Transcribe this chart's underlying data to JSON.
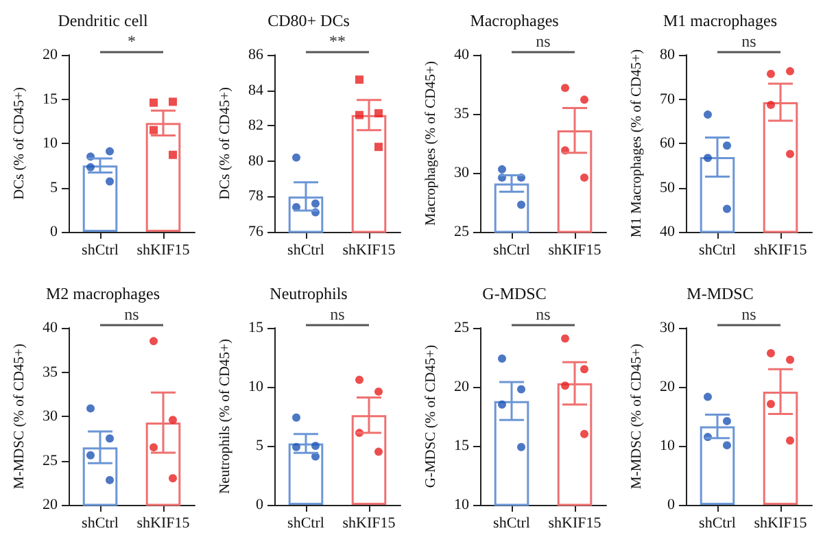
{
  "chart_data": [
    {
      "type": "bar",
      "title": "Dendritic cell",
      "ylabel": "DCs (% of CD45+)",
      "categories": [
        "shCtrl",
        "shKIF15"
      ],
      "ylim": [
        0,
        20
      ],
      "yticks": [
        0,
        5,
        10,
        15,
        20
      ],
      "grid": false,
      "annotations": [
        "*"
      ],
      "series": [
        {
          "type": "bar",
          "colors": [
            "#6b96d6",
            "#ef7070"
          ],
          "values": [
            7.5,
            12.3
          ],
          "errors": [
            0.8,
            1.4
          ]
        },
        {
          "type": "scatter",
          "color": "#1f55b5",
          "marker": "circle",
          "x": [
            "shCtrl",
            "shCtrl",
            "shCtrl",
            "shCtrl"
          ],
          "values": [
            8.5,
            9.1,
            7.3,
            5.7
          ]
        },
        {
          "type": "scatter",
          "color": "#e82020",
          "marker": "square",
          "x": [
            "shKIF15",
            "shKIF15",
            "shKIF15",
            "shKIF15"
          ],
          "values": [
            14.6,
            14.7,
            11.5,
            8.7
          ]
        }
      ]
    },
    {
      "type": "bar",
      "title": "CD80+ DCs",
      "ylabel": "DCs (% of CD45+)",
      "categories": [
        "shCtrl",
        "shKIF15"
      ],
      "ylim": [
        76,
        86
      ],
      "yticks": [
        76,
        78,
        80,
        82,
        84,
        86
      ],
      "grid": false,
      "annotations": [
        "**"
      ],
      "series": [
        {
          "type": "bar",
          "colors": [
            "#6b96d6",
            "#ef7070"
          ],
          "values": [
            78.0,
            82.6
          ],
          "errors": [
            0.8,
            0.85
          ]
        },
        {
          "type": "scatter",
          "color": "#1f55b5",
          "marker": "circle",
          "x": [
            "shCtrl",
            "shCtrl",
            "shCtrl",
            "shCtrl"
          ],
          "values": [
            80.2,
            77.6,
            77.4,
            77.1
          ]
        },
        {
          "type": "scatter",
          "color": "#e82020",
          "marker": "square",
          "x": [
            "shKIF15",
            "shKIF15",
            "shKIF15",
            "shKIF15"
          ],
          "values": [
            84.6,
            82.7,
            82.6,
            80.8
          ]
        }
      ]
    },
    {
      "type": "bar",
      "title": "Macrophages",
      "ylabel": "Macrophages (% of CD45+)",
      "categories": [
        "shCtrl",
        "shKIF15"
      ],
      "ylim": [
        25,
        40
      ],
      "yticks": [
        25,
        30,
        35,
        40
      ],
      "grid": false,
      "annotations": [
        "ns"
      ],
      "series": [
        {
          "type": "bar",
          "colors": [
            "#6b96d6",
            "#ef7070"
          ],
          "values": [
            29.1,
            33.6
          ],
          "errors": [
            0.7,
            1.9
          ]
        },
        {
          "type": "scatter",
          "color": "#1f55b5",
          "marker": "circle",
          "x": [
            "shCtrl",
            "shCtrl",
            "shCtrl",
            "shCtrl"
          ],
          "values": [
            30.3,
            29.6,
            29.6,
            27.3
          ]
        },
        {
          "type": "scatter",
          "color": "#e82020",
          "marker": "circle",
          "x": [
            "shKIF15",
            "shKIF15",
            "shKIF15",
            "shKIF15"
          ],
          "values": [
            37.2,
            36.2,
            31.9,
            29.6
          ]
        }
      ]
    },
    {
      "type": "bar",
      "title": "M1 macrophages",
      "ylabel": "M1 Macrophages (% of CD45+)",
      "categories": [
        "shCtrl",
        "shKIF15"
      ],
      "ylim": [
        40,
        80
      ],
      "yticks": [
        40,
        50,
        60,
        70,
        80
      ],
      "grid": false,
      "annotations": [
        "ns"
      ],
      "series": [
        {
          "type": "bar",
          "colors": [
            "#6b96d6",
            "#ef7070"
          ],
          "values": [
            56.9,
            69.3
          ],
          "errors": [
            4.4,
            4.2
          ]
        },
        {
          "type": "scatter",
          "color": "#1f55b5",
          "marker": "circle",
          "x": [
            "shCtrl",
            "shCtrl",
            "shCtrl",
            "shCtrl"
          ],
          "values": [
            66.5,
            59.5,
            56.7,
            45.2
          ]
        },
        {
          "type": "scatter",
          "color": "#e82020",
          "marker": "circle",
          "x": [
            "shKIF15",
            "shKIF15",
            "shKIF15",
            "shKIF15"
          ],
          "values": [
            75.7,
            76.3,
            68.7,
            57.6
          ]
        }
      ]
    },
    {
      "type": "bar",
      "title": "M2 macrophages",
      "ylabel": "M-MDSC (% of CD45+)",
      "categories": [
        "shCtrl",
        "shKIF15"
      ],
      "ylim": [
        20,
        40
      ],
      "yticks": [
        20,
        25,
        30,
        35,
        40
      ],
      "grid": false,
      "annotations": [
        "ns"
      ],
      "series": [
        {
          "type": "bar",
          "colors": [
            "#6b96d6",
            "#ef7070"
          ],
          "values": [
            26.5,
            29.3
          ],
          "errors": [
            1.8,
            3.4
          ]
        },
        {
          "type": "scatter",
          "color": "#1f55b5",
          "marker": "circle",
          "x": [
            "shCtrl",
            "shCtrl",
            "shCtrl",
            "shCtrl"
          ],
          "values": [
            30.9,
            27.5,
            25.6,
            22.8
          ]
        },
        {
          "type": "scatter",
          "color": "#e82020",
          "marker": "circle",
          "x": [
            "shKIF15",
            "shKIF15",
            "shKIF15",
            "shKIF15"
          ],
          "values": [
            38.5,
            29.6,
            26.5,
            23.0
          ]
        }
      ]
    },
    {
      "type": "bar",
      "title": "Neutrophils",
      "ylabel": "Neutrophils (% of CD45+)",
      "categories": [
        "shCtrl",
        "shKIF15"
      ],
      "ylim": [
        0,
        15
      ],
      "yticks": [
        0,
        5,
        10,
        15
      ],
      "grid": false,
      "annotations": [
        "ns"
      ],
      "series": [
        {
          "type": "bar",
          "colors": [
            "#6b96d6",
            "#ef7070"
          ],
          "values": [
            5.2,
            7.6
          ],
          "errors": [
            0.8,
            1.5
          ]
        },
        {
          "type": "scatter",
          "color": "#1f55b5",
          "marker": "circle",
          "x": [
            "shCtrl",
            "shCtrl",
            "shCtrl",
            "shCtrl"
          ],
          "values": [
            7.4,
            5.0,
            4.9,
            4.1
          ]
        },
        {
          "type": "scatter",
          "color": "#e82020",
          "marker": "circle",
          "x": [
            "shKIF15",
            "shKIF15",
            "shKIF15",
            "shKIF15"
          ],
          "values": [
            10.6,
            9.6,
            6.1,
            4.5
          ]
        }
      ]
    },
    {
      "type": "bar",
      "title": "G-MDSC",
      "ylabel": "G-MDSC (% of CD45+)",
      "categories": [
        "shCtrl",
        "shKIF15"
      ],
      "ylim": [
        10,
        25
      ],
      "yticks": [
        10,
        15,
        20,
        25
      ],
      "grid": false,
      "annotations": [
        "ns"
      ],
      "series": [
        {
          "type": "bar",
          "colors": [
            "#6b96d6",
            "#ef7070"
          ],
          "values": [
            18.8,
            20.3
          ],
          "errors": [
            1.6,
            1.8
          ]
        },
        {
          "type": "scatter",
          "color": "#1f55b5",
          "marker": "circle",
          "x": [
            "shCtrl",
            "shCtrl",
            "shCtrl",
            "shCtrl"
          ],
          "values": [
            22.4,
            19.8,
            18.5,
            14.9
          ]
        },
        {
          "type": "scatter",
          "color": "#e82020",
          "marker": "circle",
          "x": [
            "shKIF15",
            "shKIF15",
            "shKIF15",
            "shKIF15"
          ],
          "values": [
            24.1,
            21.5,
            20.1,
            16.0
          ]
        }
      ]
    },
    {
      "type": "bar",
      "title": "M-MDSC",
      "ylabel": "M-MDSC (% of CD45+)",
      "categories": [
        "shCtrl",
        "shKIF15"
      ],
      "ylim": [
        0,
        30
      ],
      "yticks": [
        0,
        10,
        20,
        30
      ],
      "grid": false,
      "annotations": [
        "ns"
      ],
      "series": [
        {
          "type": "bar",
          "colors": [
            "#6b96d6",
            "#ef7070"
          ],
          "values": [
            13.3,
            19.2
          ],
          "errors": [
            2.0,
            3.8
          ]
        },
        {
          "type": "scatter",
          "color": "#1f55b5",
          "marker": "circle",
          "x": [
            "shCtrl",
            "shCtrl",
            "shCtrl",
            "shCtrl"
          ],
          "values": [
            18.3,
            14.2,
            11.5,
            10.1
          ]
        },
        {
          "type": "scatter",
          "color": "#e82020",
          "marker": "circle",
          "x": [
            "shKIF15",
            "shKIF15",
            "shKIF15",
            "shKIF15"
          ],
          "values": [
            25.7,
            24.6,
            17.1,
            10.9
          ]
        }
      ]
    }
  ]
}
